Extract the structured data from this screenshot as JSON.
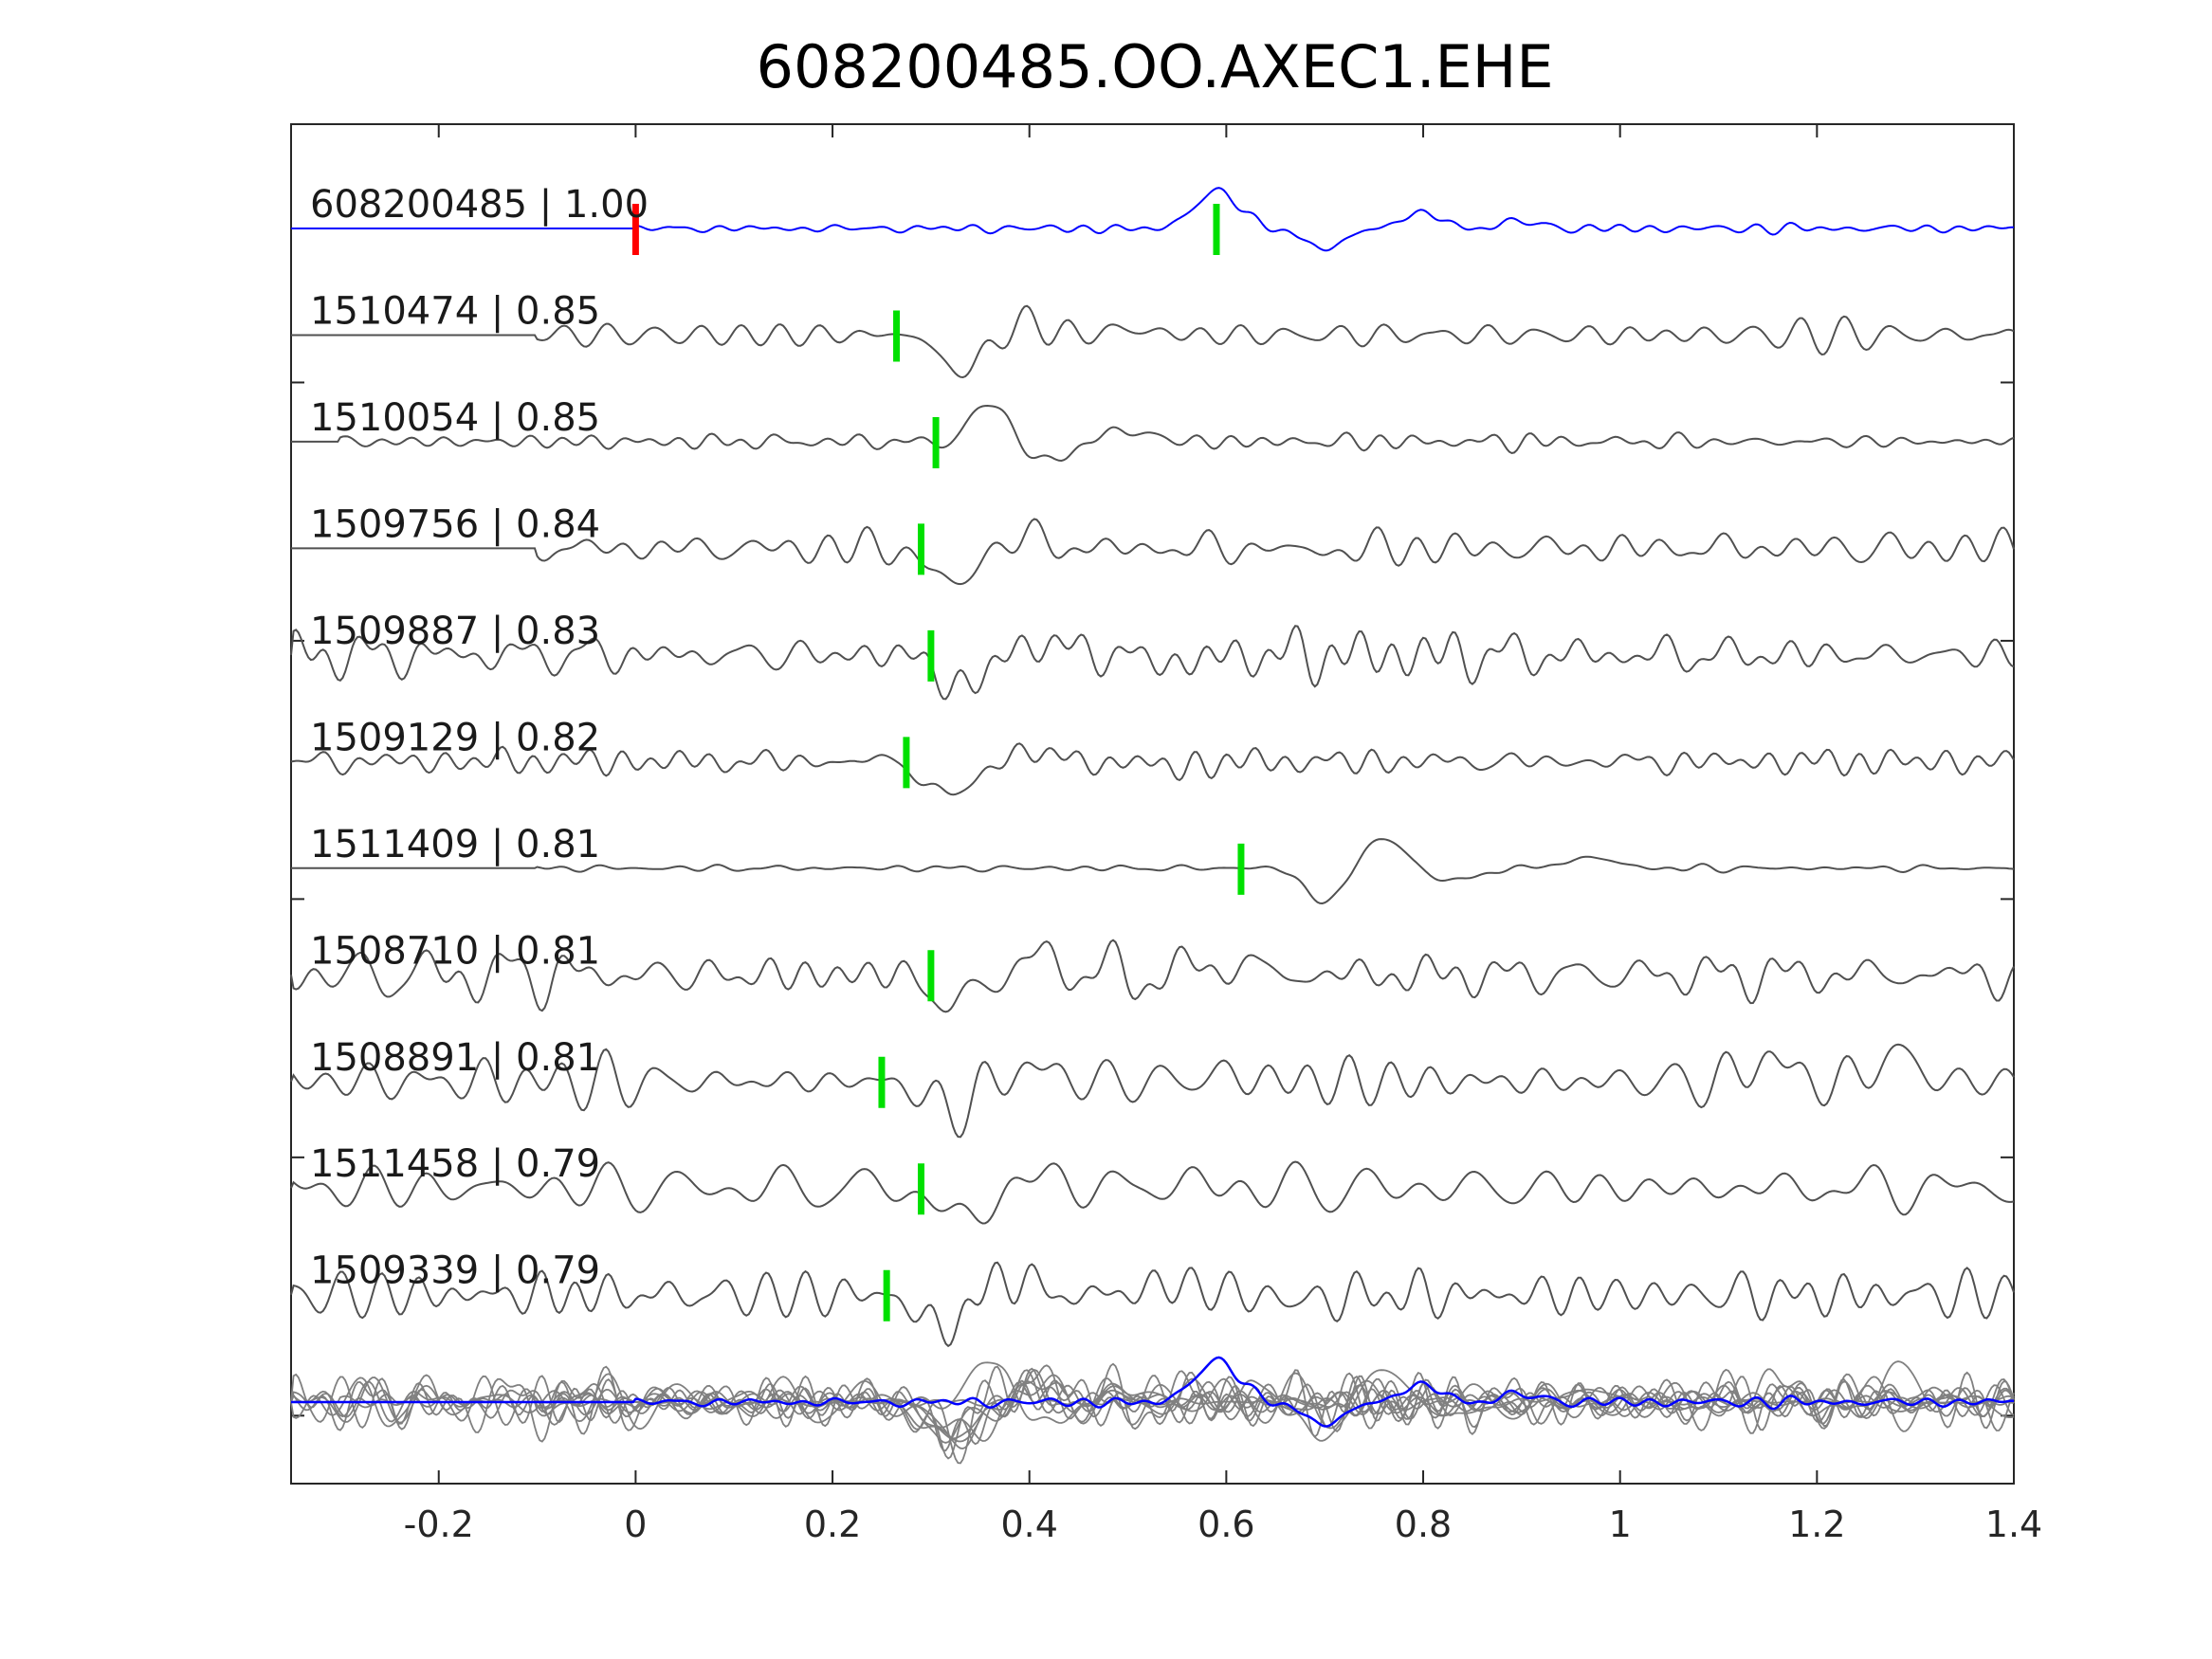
{
  "chart_data": {
    "type": "line",
    "title": "608200485.OO.AXEC1.EHE",
    "xlabel": "",
    "ylabel": "",
    "xlim": [
      -0.35,
      1.4
    ],
    "xticks": [
      -0.2,
      0,
      0.2,
      0.4,
      0.6,
      0.8,
      1,
      1.2,
      1.4
    ],
    "xtick_labels": [
      "-0.2",
      "0",
      "0.2",
      "0.4",
      "0.6",
      "0.8",
      "1",
      "1.2",
      "1.4"
    ],
    "grid": false,
    "colors": {
      "template": "#0000ff",
      "matches": "#505050",
      "overlay": "#808080",
      "pick_template": "#ff0000",
      "pick_match": "#00e000",
      "axes": "#262626"
    },
    "series": [
      {
        "name": "608200485 | 1.00",
        "template": true,
        "pick_red": 0.0,
        "pick_green": 0.59,
        "wave": [
          [
            0.59,
            0.045,
            38,
            1.0
          ],
          [
            0.7,
            0.035,
            32,
            -0.7
          ],
          [
            0.8,
            0.04,
            22,
            0.7
          ],
          [
            0.9,
            0.04,
            18,
            0.4
          ]
        ],
        "noise": 1.5,
        "noise_start": 0.0,
        "seed": 1
      },
      {
        "name": "1510474 | 0.85",
        "pick_green": 0.265,
        "wave": [
          [
            0.33,
            0.04,
            38,
            -1.0
          ],
          [
            0.4,
            0.035,
            30,
            0.4
          ],
          [
            0.5,
            0.05,
            20,
            0.3
          ]
        ],
        "noise": 6,
        "noise_start": -0.1,
        "seed": 2
      },
      {
        "name": "1510054 | 0.85",
        "pick_green": 0.305,
        "wave": [
          [
            0.36,
            0.035,
            40,
            1.0
          ],
          [
            0.42,
            0.04,
            25,
            -0.8
          ],
          [
            0.5,
            0.05,
            18,
            0.6
          ]
        ],
        "noise": 3,
        "noise_start": -0.3,
        "seed": 3
      },
      {
        "name": "1509756 | 0.84",
        "pick_green": 0.29,
        "wave": [
          [
            0.32,
            0.04,
            38,
            -1.0
          ],
          [
            0.4,
            0.04,
            25,
            0.4
          ],
          [
            0.7,
            0.05,
            15,
            -0.2
          ]
        ],
        "noise": 7,
        "noise_start": -0.1,
        "seed": 4
      },
      {
        "name": "1509887 | 0.83",
        "pick_green": 0.3,
        "wave": [
          [
            0.33,
            0.04,
            36,
            -1.0
          ],
          [
            0.42,
            0.05,
            22,
            0.5
          ],
          [
            0.55,
            0.05,
            16,
            -0.5
          ]
        ],
        "noise": 9,
        "noise_start": -0.35,
        "seed": 5
      },
      {
        "name": "1509129 | 0.82",
        "pick_green": 0.275,
        "wave": [
          [
            0.32,
            0.045,
            36,
            -1.0
          ],
          [
            0.4,
            0.04,
            26,
            0.4
          ],
          [
            0.55,
            0.05,
            18,
            -0.3
          ]
        ],
        "noise": 5,
        "noise_start": -0.35,
        "seed": 6
      },
      {
        "name": "1511409 | 0.81",
        "pick_green": 0.615,
        "wave": [
          [
            0.7,
            0.04,
            33,
            -1.0
          ],
          [
            0.76,
            0.04,
            26,
            1.2
          ],
          [
            0.83,
            0.05,
            20,
            -0.6
          ],
          [
            0.97,
            0.05,
            18,
            0.6
          ]
        ],
        "noise": 1.5,
        "noise_start": -0.1,
        "seed": 7
      },
      {
        "name": "1508710 | 0.81",
        "pick_green": 0.3,
        "wave": [
          [
            0.32,
            0.03,
            40,
            -1.0
          ],
          [
            0.42,
            0.04,
            28,
            0.6
          ],
          [
            0.6,
            0.05,
            20,
            0.6
          ]
        ],
        "noise": 12,
        "noise_start": -0.35,
        "seed": 8
      },
      {
        "name": "1508891 | 0.81",
        "pick_green": 0.25,
        "wave": [
          [
            0.32,
            0.05,
            28,
            -1.0
          ],
          [
            0.4,
            0.05,
            22,
            0.6
          ],
          [
            0.6,
            0.06,
            14,
            0.4
          ],
          [
            1.15,
            0.04,
            30,
            0.8
          ],
          [
            1.28,
            0.04,
            32,
            0.9
          ]
        ],
        "noise": 9,
        "noise_start": -0.35,
        "seed": 9
      },
      {
        "name": "1511458 | 0.79",
        "pick_green": 0.29,
        "wave": [
          [
            0.33,
            0.04,
            36,
            -1.0
          ],
          [
            0.42,
            0.04,
            28,
            0.4
          ],
          [
            0.55,
            0.05,
            16,
            0.3
          ]
        ],
        "noise": 10,
        "noise_start": -0.35,
        "seed": 10
      },
      {
        "name": "1509339 | 0.79",
        "pick_green": 0.255,
        "wave": [
          [
            0.31,
            0.045,
            34,
            -1.0
          ],
          [
            0.38,
            0.04,
            26,
            0.7
          ],
          [
            0.55,
            0.06,
            20,
            0.5
          ],
          [
            0.68,
            0.05,
            16,
            -0.4
          ]
        ],
        "noise": 10,
        "noise_start": -0.35,
        "seed": 11
      }
    ]
  }
}
